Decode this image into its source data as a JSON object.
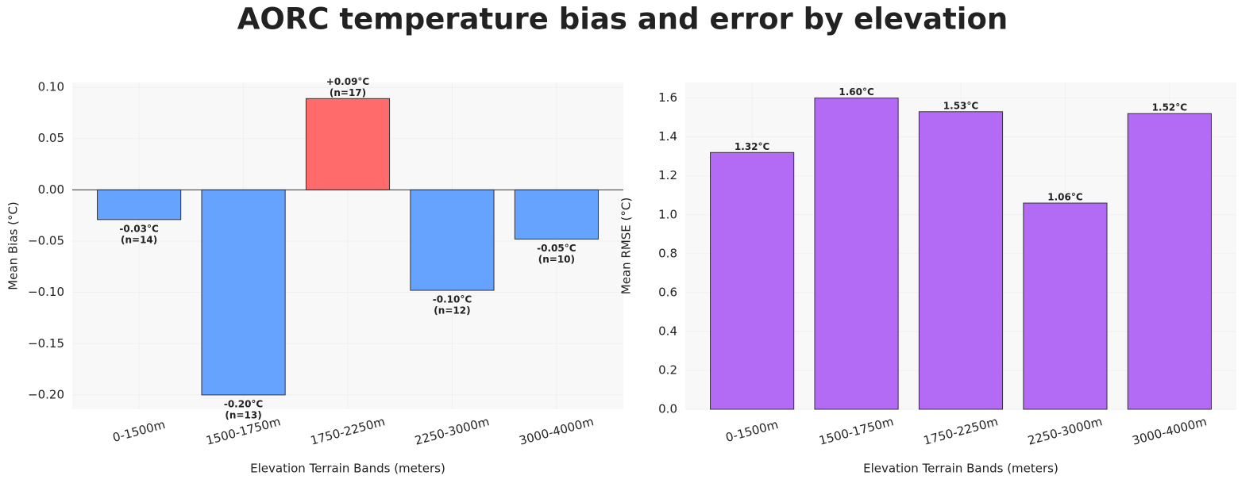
{
  "title": "AORC temperature bias and error by elevation",
  "chart_data": [
    {
      "type": "bar",
      "ylabel": "Mean Bias (°C)",
      "xlabel": "Elevation Terrain Bands (meters)",
      "categories": [
        "0-1500m",
        "1500-1750m",
        "1750-2250m",
        "2250-3000m",
        "3000-4000m"
      ],
      "values": [
        -0.029,
        -0.2,
        0.089,
        -0.098,
        -0.048
      ],
      "value_labels": [
        [
          "-0.03°C",
          "(n=14)"
        ],
        [
          "-0.20°C",
          "(n=13)"
        ],
        [
          "+0.09°C",
          "(n=17)"
        ],
        [
          "-0.10°C",
          "(n=12)"
        ],
        [
          "-0.05°C",
          "(n=10)"
        ]
      ],
      "colors": [
        "#66a3ff",
        "#66a3ff",
        "#ff6b6b",
        "#66a3ff",
        "#66a3ff"
      ],
      "ylim": [
        -0.214,
        0.1047
      ],
      "yticks": [
        {
          "value": -0.2,
          "label": "−0.20"
        },
        {
          "value": -0.15,
          "label": "−0.15"
        },
        {
          "value": -0.1,
          "label": "−0.10"
        },
        {
          "value": -0.05,
          "label": "−0.05"
        },
        {
          "value": 0,
          "label": "0.00"
        },
        {
          "value": 0.05,
          "label": "0.05"
        },
        {
          "value": 0.1,
          "label": "0.10"
        }
      ],
      "zero_line": true,
      "grid": true
    },
    {
      "type": "bar",
      "ylabel": "Mean RMSE (°C)",
      "xlabel": "Elevation Terrain Bands (meters)",
      "categories": [
        "0-1500m",
        "1500-1750m",
        "1750-2250m",
        "2250-3000m",
        "3000-4000m"
      ],
      "values": [
        1.32,
        1.6,
        1.53,
        1.06,
        1.52
      ],
      "value_labels": [
        [
          "1.32°C"
        ],
        [
          "1.60°C"
        ],
        [
          "1.53°C"
        ],
        [
          "1.06°C"
        ],
        [
          "1.52°C"
        ]
      ],
      "colors": [
        "#b36bf5",
        "#b36bf5",
        "#b36bf5",
        "#b36bf5",
        "#b36bf5"
      ],
      "ylim": [
        0,
        1.68
      ],
      "yticks": [
        {
          "value": 0,
          "label": "0.0"
        },
        0.2,
        0.4,
        0.6,
        0.8,
        {
          "value": 1,
          "label": "1.0"
        },
        1.2,
        1.4,
        1.6
      ],
      "zero_line": false,
      "grid": true
    }
  ]
}
